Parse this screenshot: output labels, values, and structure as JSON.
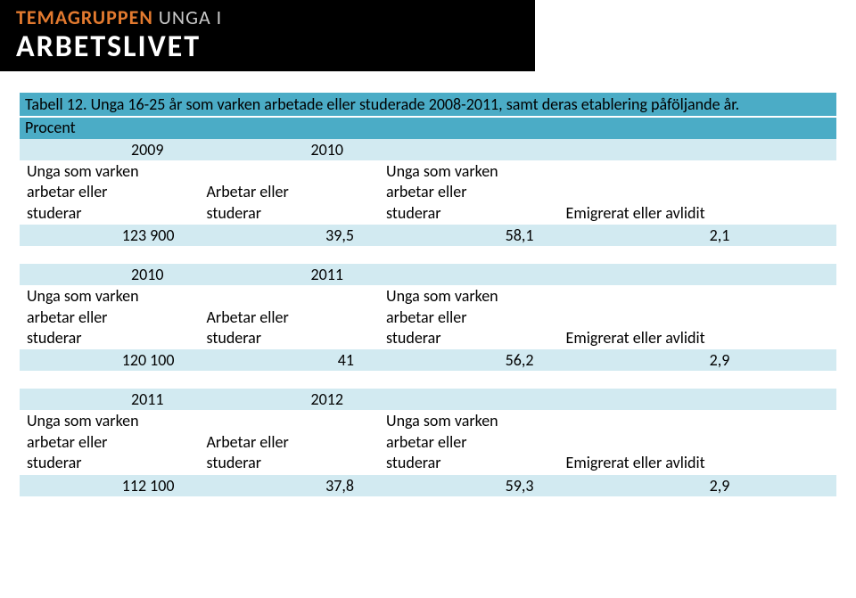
{
  "banner": {
    "line1a": "TEMAGRUPPEN",
    "line1b": " UNGA I",
    "line2": "ARBETSLIVET",
    "bg": "#000000",
    "accent": "#e37a2f",
    "sub": "#c8c8c8",
    "main": "#ffffff"
  },
  "title": "Tabell 12. Unga 16-25 år som varken arbetade eller studerade 2008-2011, samt deras etablering påföljande år.",
  "procent": "Procent",
  "colors": {
    "band": "#4bacc6",
    "row_alt": "#d2eaf1",
    "row_plain": "#ffffff",
    "text": "#000000"
  },
  "columns": {
    "col1_l1": "Unga som varken",
    "col1_l2": "arbetar eller",
    "col1_l3": "studerar",
    "col2_l1": "Arbetar eller",
    "col2_l2": "studerar",
    "col3_l1": "Unga som varken",
    "col3_l2": "arbetar eller",
    "col3_l3": "studerar",
    "col4": "Emigrerat eller avlidit"
  },
  "blocks": [
    {
      "year_a": "2009",
      "year_b": "2010",
      "n": "123 900",
      "v2": "39,5",
      "v3": "58,1",
      "v4": "2,1"
    },
    {
      "year_a": "2010",
      "year_b": "2011",
      "n": "120 100",
      "v2": "41",
      "v3": "56,2",
      "v4": "2,9"
    },
    {
      "year_a": "2011",
      "year_b": "2012",
      "n": "112 100",
      "v2": "37,8",
      "v3": "59,3",
      "v4": "2,9"
    }
  ]
}
